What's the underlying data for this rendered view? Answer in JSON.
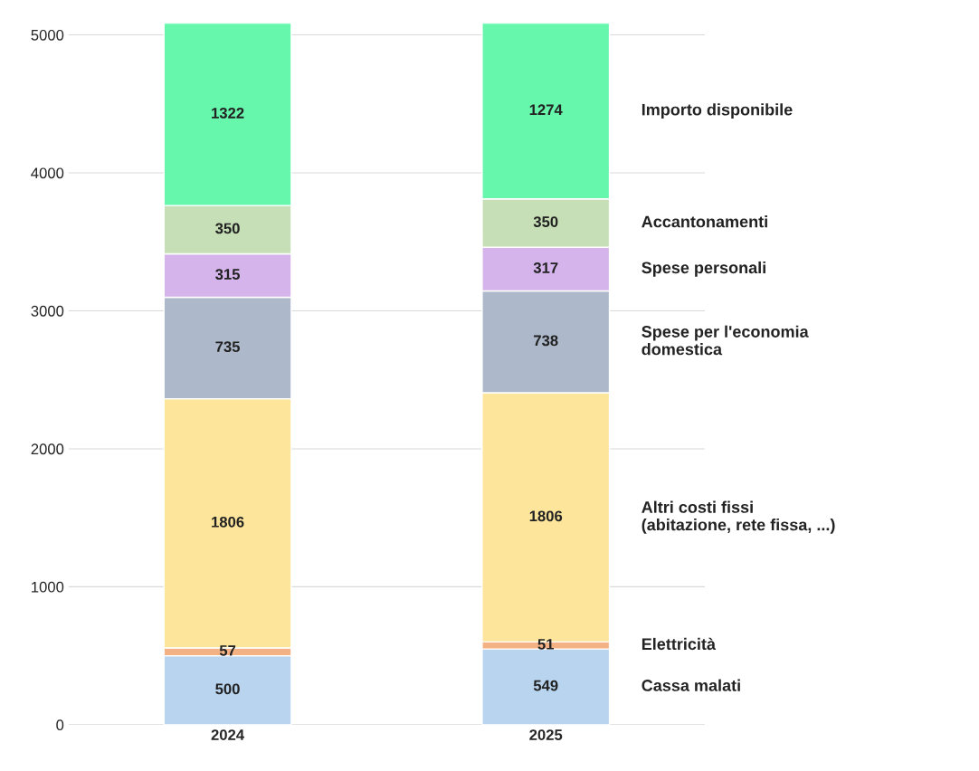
{
  "chart_data": {
    "type": "bar",
    "stacked": true,
    "data_labels": true,
    "grid": "y",
    "categories": [
      "2024",
      "2025"
    ],
    "ylim": [
      0,
      5085
    ],
    "yticks": [
      0,
      1000,
      2000,
      3000,
      4000,
      5000
    ],
    "series": [
      {
        "name": "Cassa malati",
        "color": "#b8d4ee",
        "values": [
          500,
          549
        ]
      },
      {
        "name": "Elettricità",
        "color": "#f4b183",
        "values": [
          57,
          51
        ]
      },
      {
        "name": "Altri costi fissi\n(abitazione, rete fissa, ...)",
        "color": "#fde59c",
        "values": [
          1806,
          1806
        ]
      },
      {
        "name": "Spese per l'economia\ndomestica",
        "color": "#adb9ca",
        "values": [
          735,
          738
        ]
      },
      {
        "name": "Spese personali",
        "color": "#d4b4ea",
        "values": [
          315,
          317
        ]
      },
      {
        "name": "Accantonamenti",
        "color": "#c6dfb6",
        "values": [
          350,
          350
        ]
      },
      {
        "name": "Importo disponibile",
        "color": "#66f6ac",
        "values": [
          1322,
          1274
        ]
      }
    ]
  }
}
